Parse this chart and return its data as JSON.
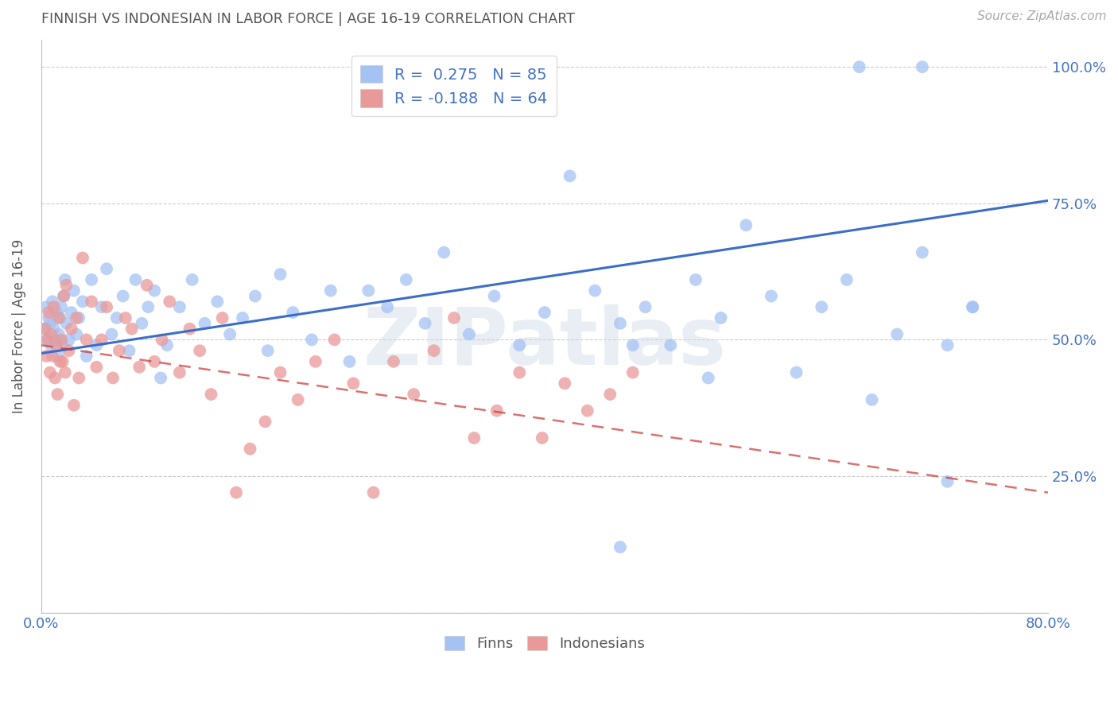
{
  "title": "FINNISH VS INDONESIAN IN LABOR FORCE | AGE 16-19 CORRELATION CHART",
  "source": "Source: ZipAtlas.com",
  "ylabel": "In Labor Force | Age 16-19",
  "watermark": "ZIPatlas",
  "x_min": 0.0,
  "x_max": 0.8,
  "y_min": 0.0,
  "y_max": 1.05,
  "x_ticks": [
    0.0,
    0.1,
    0.2,
    0.3,
    0.4,
    0.5,
    0.6,
    0.7,
    0.8
  ],
  "y_ticks": [
    0.0,
    0.25,
    0.5,
    0.75,
    1.0
  ],
  "y_tick_labels": [
    "",
    "25.0%",
    "50.0%",
    "75.0%",
    "100.0%"
  ],
  "finn_R": 0.275,
  "finn_N": 85,
  "indo_R": -0.188,
  "indo_N": 64,
  "finn_color": "#a4c2f4",
  "indo_color": "#ea9999",
  "finn_line_color": "#3c6dc8",
  "indo_line_color": "#cc3333",
  "grid_color": "#cccccc",
  "background_color": "#ffffff",
  "title_color": "#555555",
  "axis_label_color": "#555555",
  "tick_label_color": "#4472c4",
  "legend_label_color": "#333333",
  "bottom_legend_finn": "Finns",
  "bottom_legend_indo": "Indonesians",
  "finns_x": [
    0.003,
    0.004,
    0.005,
    0.006,
    0.007,
    0.008,
    0.009,
    0.01,
    0.011,
    0.012,
    0.013,
    0.014,
    0.015,
    0.016,
    0.017,
    0.018,
    0.019,
    0.02,
    0.022,
    0.024,
    0.026,
    0.028,
    0.03,
    0.033,
    0.036,
    0.04,
    0.044,
    0.048,
    0.052,
    0.056,
    0.06,
    0.065,
    0.07,
    0.075,
    0.08,
    0.085,
    0.09,
    0.095,
    0.1,
    0.11,
    0.12,
    0.13,
    0.14,
    0.15,
    0.16,
    0.17,
    0.18,
    0.19,
    0.2,
    0.215,
    0.23,
    0.245,
    0.26,
    0.275,
    0.29,
    0.305,
    0.32,
    0.34,
    0.36,
    0.38,
    0.4,
    0.42,
    0.44,
    0.46,
    0.48,
    0.5,
    0.52,
    0.54,
    0.56,
    0.58,
    0.6,
    0.62,
    0.64,
    0.66,
    0.68,
    0.7,
    0.72,
    0.74,
    0.46,
    0.53,
    0.47,
    0.65,
    0.7,
    0.72,
    0.74
  ],
  "finns_y": [
    0.52,
    0.56,
    0.5,
    0.54,
    0.53,
    0.49,
    0.57,
    0.52,
    0.5,
    0.55,
    0.47,
    0.51,
    0.54,
    0.56,
    0.49,
    0.58,
    0.61,
    0.53,
    0.5,
    0.55,
    0.59,
    0.51,
    0.54,
    0.57,
    0.47,
    0.61,
    0.49,
    0.56,
    0.63,
    0.51,
    0.54,
    0.58,
    0.48,
    0.61,
    0.53,
    0.56,
    0.59,
    0.43,
    0.49,
    0.56,
    0.61,
    0.53,
    0.57,
    0.51,
    0.54,
    0.58,
    0.48,
    0.62,
    0.55,
    0.5,
    0.59,
    0.46,
    0.59,
    0.56,
    0.61,
    0.53,
    0.66,
    0.51,
    0.58,
    0.49,
    0.55,
    0.8,
    0.59,
    0.53,
    0.56,
    0.49,
    0.61,
    0.54,
    0.71,
    0.58,
    0.44,
    0.56,
    0.61,
    0.39,
    0.51,
    0.66,
    0.49,
    0.56,
    0.12,
    0.43,
    0.49,
    1.0,
    1.0,
    0.24,
    0.56
  ],
  "indos_x": [
    0.003,
    0.004,
    0.005,
    0.006,
    0.007,
    0.008,
    0.009,
    0.01,
    0.011,
    0.012,
    0.013,
    0.014,
    0.015,
    0.016,
    0.017,
    0.018,
    0.019,
    0.02,
    0.022,
    0.024,
    0.026,
    0.028,
    0.03,
    0.033,
    0.036,
    0.04,
    0.044,
    0.048,
    0.052,
    0.057,
    0.062,
    0.067,
    0.072,
    0.078,
    0.084,
    0.09,
    0.096,
    0.102,
    0.11,
    0.118,
    0.126,
    0.135,
    0.144,
    0.155,
    0.166,
    0.178,
    0.19,
    0.204,
    0.218,
    0.233,
    0.248,
    0.264,
    0.28,
    0.296,
    0.312,
    0.328,
    0.344,
    0.362,
    0.38,
    0.398,
    0.416,
    0.434,
    0.452,
    0.47
  ],
  "indos_y": [
    0.52,
    0.47,
    0.5,
    0.55,
    0.44,
    0.51,
    0.47,
    0.56,
    0.43,
    0.49,
    0.4,
    0.54,
    0.46,
    0.5,
    0.46,
    0.58,
    0.44,
    0.6,
    0.48,
    0.52,
    0.38,
    0.54,
    0.43,
    0.65,
    0.5,
    0.57,
    0.45,
    0.5,
    0.56,
    0.43,
    0.48,
    0.54,
    0.52,
    0.45,
    0.6,
    0.46,
    0.5,
    0.57,
    0.44,
    0.52,
    0.48,
    0.4,
    0.54,
    0.22,
    0.3,
    0.35,
    0.44,
    0.39,
    0.46,
    0.5,
    0.42,
    0.22,
    0.46,
    0.4,
    0.48,
    0.54,
    0.32,
    0.37,
    0.44,
    0.32,
    0.42,
    0.37,
    0.4,
    0.44
  ]
}
